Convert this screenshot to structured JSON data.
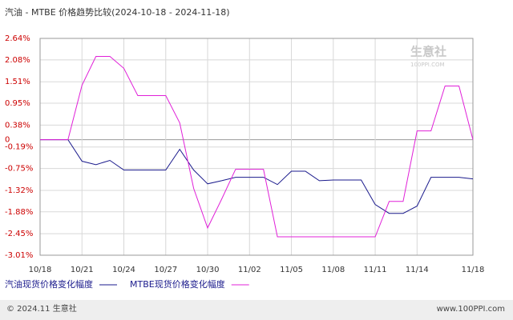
{
  "chart_data": {
    "type": "line",
    "title": "汽油 - MTBE 价格趋势比较(2024-10-18 - 2024-11-18)",
    "categories": [
      "10/18",
      null,
      null,
      "10/21",
      null,
      null,
      "10/24",
      null,
      null,
      "10/27",
      null,
      null,
      "10/30",
      null,
      null,
      "11/02",
      null,
      null,
      "11/05",
      null,
      null,
      "11/08",
      null,
      null,
      "11/11",
      null,
      null,
      "11/14",
      null,
      null,
      null,
      "11/18"
    ],
    "series": [
      {
        "name": "汽油现货价格变化幅度",
        "color": "#1a1a8c",
        "values": [
          0,
          0,
          0,
          -0.56,
          -0.65,
          -0.54,
          -0.79,
          -0.79,
          -0.79,
          -0.79,
          -0.25,
          -0.79,
          -1.15,
          -1.07,
          -0.98,
          -0.98,
          -0.98,
          -1.17,
          -0.82,
          -0.82,
          -1.07,
          -1.05,
          -1.05,
          -1.05,
          -1.69,
          -1.92,
          -1.92,
          -1.73,
          -0.98,
          -0.98,
          -0.98,
          -1.02
        ]
      },
      {
        "name": "MTBE现货价格变化幅度",
        "color": "#e020d8",
        "values": [
          0,
          0,
          0,
          1.42,
          2.17,
          2.17,
          1.86,
          1.15,
          1.15,
          1.15,
          0.44,
          -1.27,
          -2.3,
          -1.55,
          -0.77,
          -0.77,
          -0.77,
          -2.53,
          -2.53,
          -2.53,
          -2.53,
          -2.53,
          -2.53,
          -2.53,
          -2.53,
          -1.61,
          -1.61,
          0.23,
          0.23,
          1.4,
          1.4,
          0
        ]
      }
    ],
    "ylim": [
      -3.01,
      2.64
    ],
    "yticks": [
      {
        "value": 2.64,
        "label": "2.64%"
      },
      {
        "value": 2.08,
        "label": "2.08%"
      },
      {
        "value": 1.51,
        "label": "1.51%"
      },
      {
        "value": 0.95,
        "label": "0.95%"
      },
      {
        "value": 0.38,
        "label": "0.38%"
      },
      0,
      {
        "value": -0.19,
        "label": "-0.19%"
      },
      {
        "value": -0.75,
        "label": "-0.75%"
      },
      {
        "value": -1.32,
        "label": "-1.32%"
      },
      {
        "value": -1.88,
        "label": "-1.88%"
      },
      {
        "value": -2.45,
        "label": "-2.45%"
      },
      {
        "value": -3.01,
        "label": "-3.01%"
      }
    ],
    "grid": true,
    "watermark": {
      "name": "生意社",
      "site": "100PPI.COM"
    },
    "footer": {
      "left": "© 2024.11 生意社",
      "right": "www.100PPI.com"
    }
  }
}
